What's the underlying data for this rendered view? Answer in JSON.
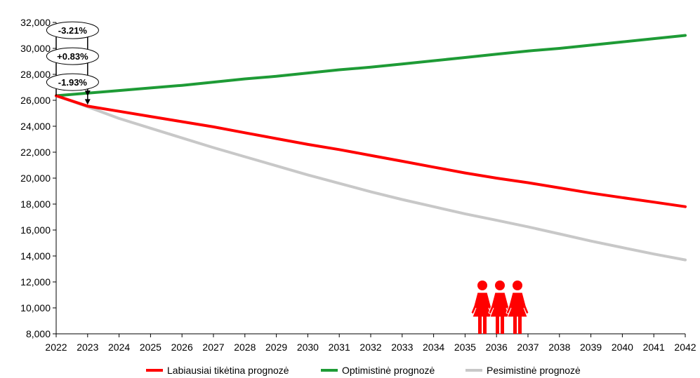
{
  "chart_data": {
    "type": "line",
    "title": "",
    "xlabel": "",
    "ylabel": "",
    "x": [
      2022,
      2023,
      2024,
      2025,
      2026,
      2027,
      2028,
      2029,
      2030,
      2031,
      2032,
      2033,
      2034,
      2035,
      2036,
      2037,
      2038,
      2039,
      2040,
      2041,
      2042
    ],
    "x_tick_labels": [
      "2022",
      "2023",
      "2024",
      "2025",
      "2026",
      "2027",
      "2028",
      "2029",
      "2030",
      "2031",
      "2032",
      "2033",
      "2034",
      "2035",
      "2036",
      "2037",
      "2038",
      "2039",
      "2040",
      "2041",
      "2042"
    ],
    "ylim": [
      8000,
      32000
    ],
    "y_tick_labels": [
      "8,000",
      "10,000",
      "12,000",
      "14,000",
      "16,000",
      "18,000",
      "20,000",
      "22,000",
      "24,000",
      "26,000",
      "28,000",
      "30,000",
      "32,000"
    ],
    "y_ticks": [
      8000,
      10000,
      12000,
      14000,
      16000,
      18000,
      20000,
      22000,
      24000,
      26000,
      28000,
      30000,
      32000
    ],
    "grid": false,
    "legend_position": "bottom",
    "series": [
      {
        "name": "Labiausiai tikėtina prognozė",
        "color": "#ff0000",
        "values": [
          26350,
          25550,
          25150,
          24750,
          24350,
          23950,
          23500,
          23050,
          22600,
          22200,
          21750,
          21300,
          20850,
          20400,
          20000,
          19650,
          19250,
          18850,
          18500,
          18150,
          17800
        ]
      },
      {
        "name": "Optimistinė prognozė",
        "color": "#1e9b36",
        "values": [
          26350,
          26550,
          26750,
          26950,
          27150,
          27400,
          27650,
          27850,
          28100,
          28350,
          28550,
          28800,
          29050,
          29300,
          29550,
          29800,
          30000,
          30250,
          30500,
          30750,
          31000
        ]
      },
      {
        "name": "Pesimistinė prognozė",
        "color": "#c8c8c8",
        "values": [
          26350,
          25500,
          24600,
          23850,
          23100,
          22350,
          21650,
          20950,
          20250,
          19600,
          18950,
          18350,
          17800,
          17250,
          16750,
          16250,
          15700,
          15150,
          14650,
          14150,
          13700
        ]
      }
    ],
    "annotations": [
      {
        "text": "-3.21%",
        "y": 31400
      },
      {
        "text": "+0.83%",
        "y": 29400
      },
      {
        "text": "-1.93%",
        "y": 27400
      }
    ],
    "icon": "three-women-icon",
    "icon_color": "#ff0000"
  }
}
